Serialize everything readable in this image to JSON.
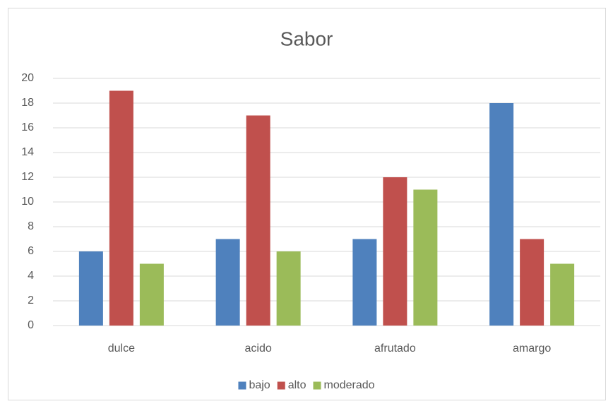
{
  "chart_data": {
    "type": "bar",
    "title": "Sabor",
    "categories": [
      "dulce",
      "acido",
      "afrutado",
      "amargo"
    ],
    "series": [
      {
        "name": "bajo",
        "color": "#4f81bd",
        "values": [
          6,
          7,
          7,
          18
        ]
      },
      {
        "name": "alto",
        "color": "#c0504d",
        "values": [
          19,
          17,
          12,
          7
        ]
      },
      {
        "name": "moderado",
        "color": "#9bbb59",
        "values": [
          5,
          6,
          11,
          5
        ]
      }
    ],
    "ylim": [
      0,
      20
    ],
    "yticks": [
      0,
      2,
      4,
      6,
      8,
      10,
      12,
      14,
      16,
      18,
      20
    ],
    "grid": true,
    "legend": "bottom"
  }
}
